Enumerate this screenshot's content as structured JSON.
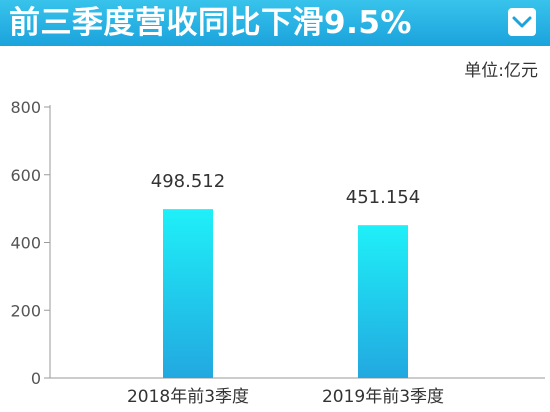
{
  "header": {
    "title": "前三季度营收同比下滑9.5%",
    "accent_color": "#1ba3dc",
    "toggle_icon": "chevron-down-icon"
  },
  "unit_label": "单位:亿元",
  "chart_data": {
    "type": "bar",
    "title": "前三季度营收同比下滑9.5%",
    "xlabel": "",
    "ylabel": "单位:亿元",
    "categories": [
      "2018年前3季度",
      "2019年前3季度"
    ],
    "values": [
      498.512,
      451.154
    ],
    "value_labels": [
      "498.512",
      "451.154"
    ],
    "ylim": [
      0,
      800
    ],
    "yticks": [
      0,
      200,
      400,
      600,
      800
    ],
    "grid": false,
    "bar_color_top": "#1ff0f8",
    "bar_color_bottom": "#22a8e0"
  }
}
